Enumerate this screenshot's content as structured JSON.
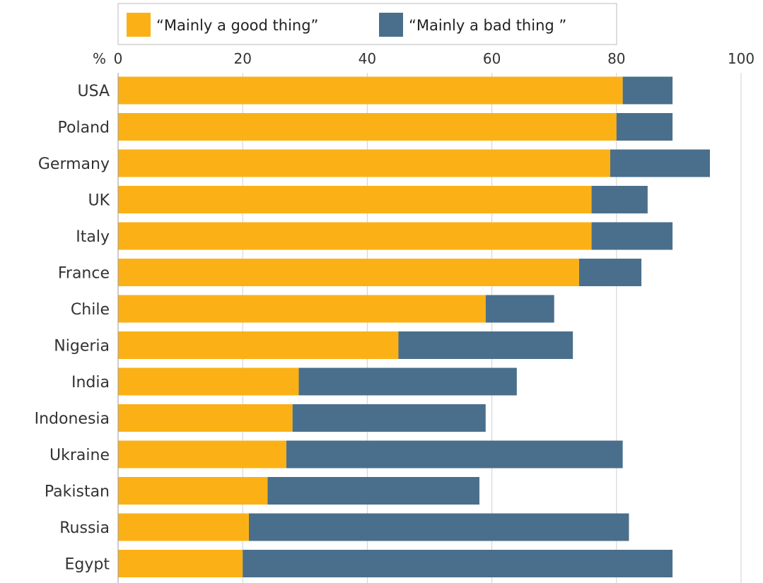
{
  "chart_data": {
    "type": "bar",
    "orientation": "horizontal",
    "stacked": true,
    "categories": [
      "USA",
      "Poland",
      "Germany",
      "UK",
      "Italy",
      "France",
      "Chile",
      "Nigeria",
      "India",
      "Indonesia",
      "Ukraine",
      "Pakistan",
      "Russia",
      "Egypt"
    ],
    "series": [
      {
        "name": "“Mainly a good thing”",
        "color": "#FBB116",
        "values": [
          81,
          80,
          79,
          76,
          76,
          74,
          59,
          45,
          29,
          28,
          27,
          24,
          21,
          20
        ]
      },
      {
        "name": "“Mainly a bad thing ”",
        "color": "#4A6F8C",
        "values": [
          8,
          9,
          16,
          9,
          13,
          10,
          11,
          28,
          35,
          31,
          54,
          34,
          61,
          69
        ]
      }
    ],
    "axis_unit_label": "%",
    "xlim": [
      0,
      100
    ],
    "xticks": [
      0,
      20,
      40,
      60,
      80,
      100
    ],
    "xaxis_position": "top",
    "grid": true,
    "legend_position": "top-center"
  }
}
